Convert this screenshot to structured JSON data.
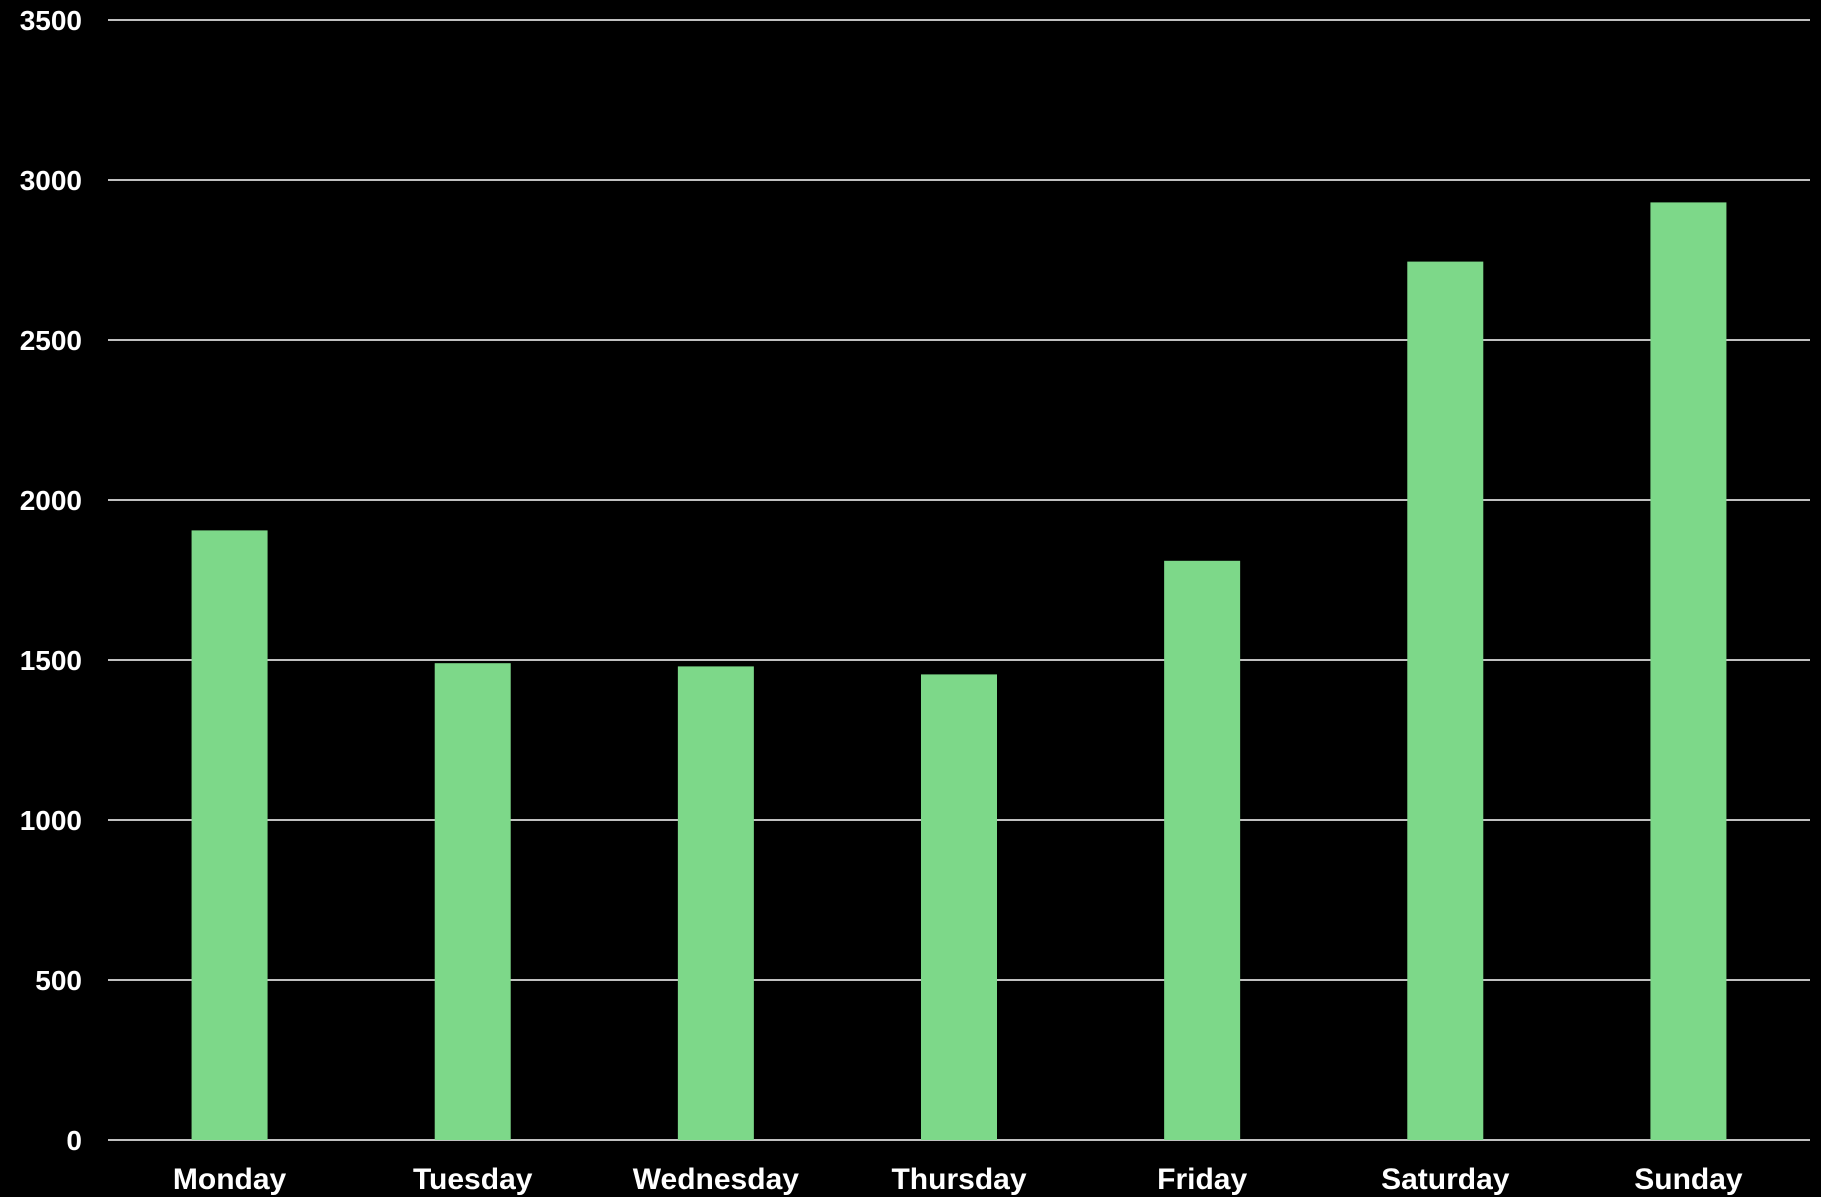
{
  "chart_data": {
    "type": "bar",
    "categories": [
      "Monday",
      "Tuesday",
      "Wednesday",
      "Thursday",
      "Friday",
      "Saturday",
      "Sunday"
    ],
    "values": [
      1905,
      1490,
      1480,
      1455,
      1810,
      2745,
      2930
    ],
    "title": "",
    "xlabel": "",
    "ylabel": "",
    "ylim": [
      0,
      3500
    ],
    "yticks": [
      "0",
      "500",
      "1000",
      "1500",
      "2000",
      "2500",
      "3000",
      "3500"
    ],
    "grid": true,
    "legend": "none"
  },
  "colors": {
    "background": "#000000",
    "bar": "#7dd889",
    "grid": "#ffffff",
    "text": "#ffffff"
  }
}
